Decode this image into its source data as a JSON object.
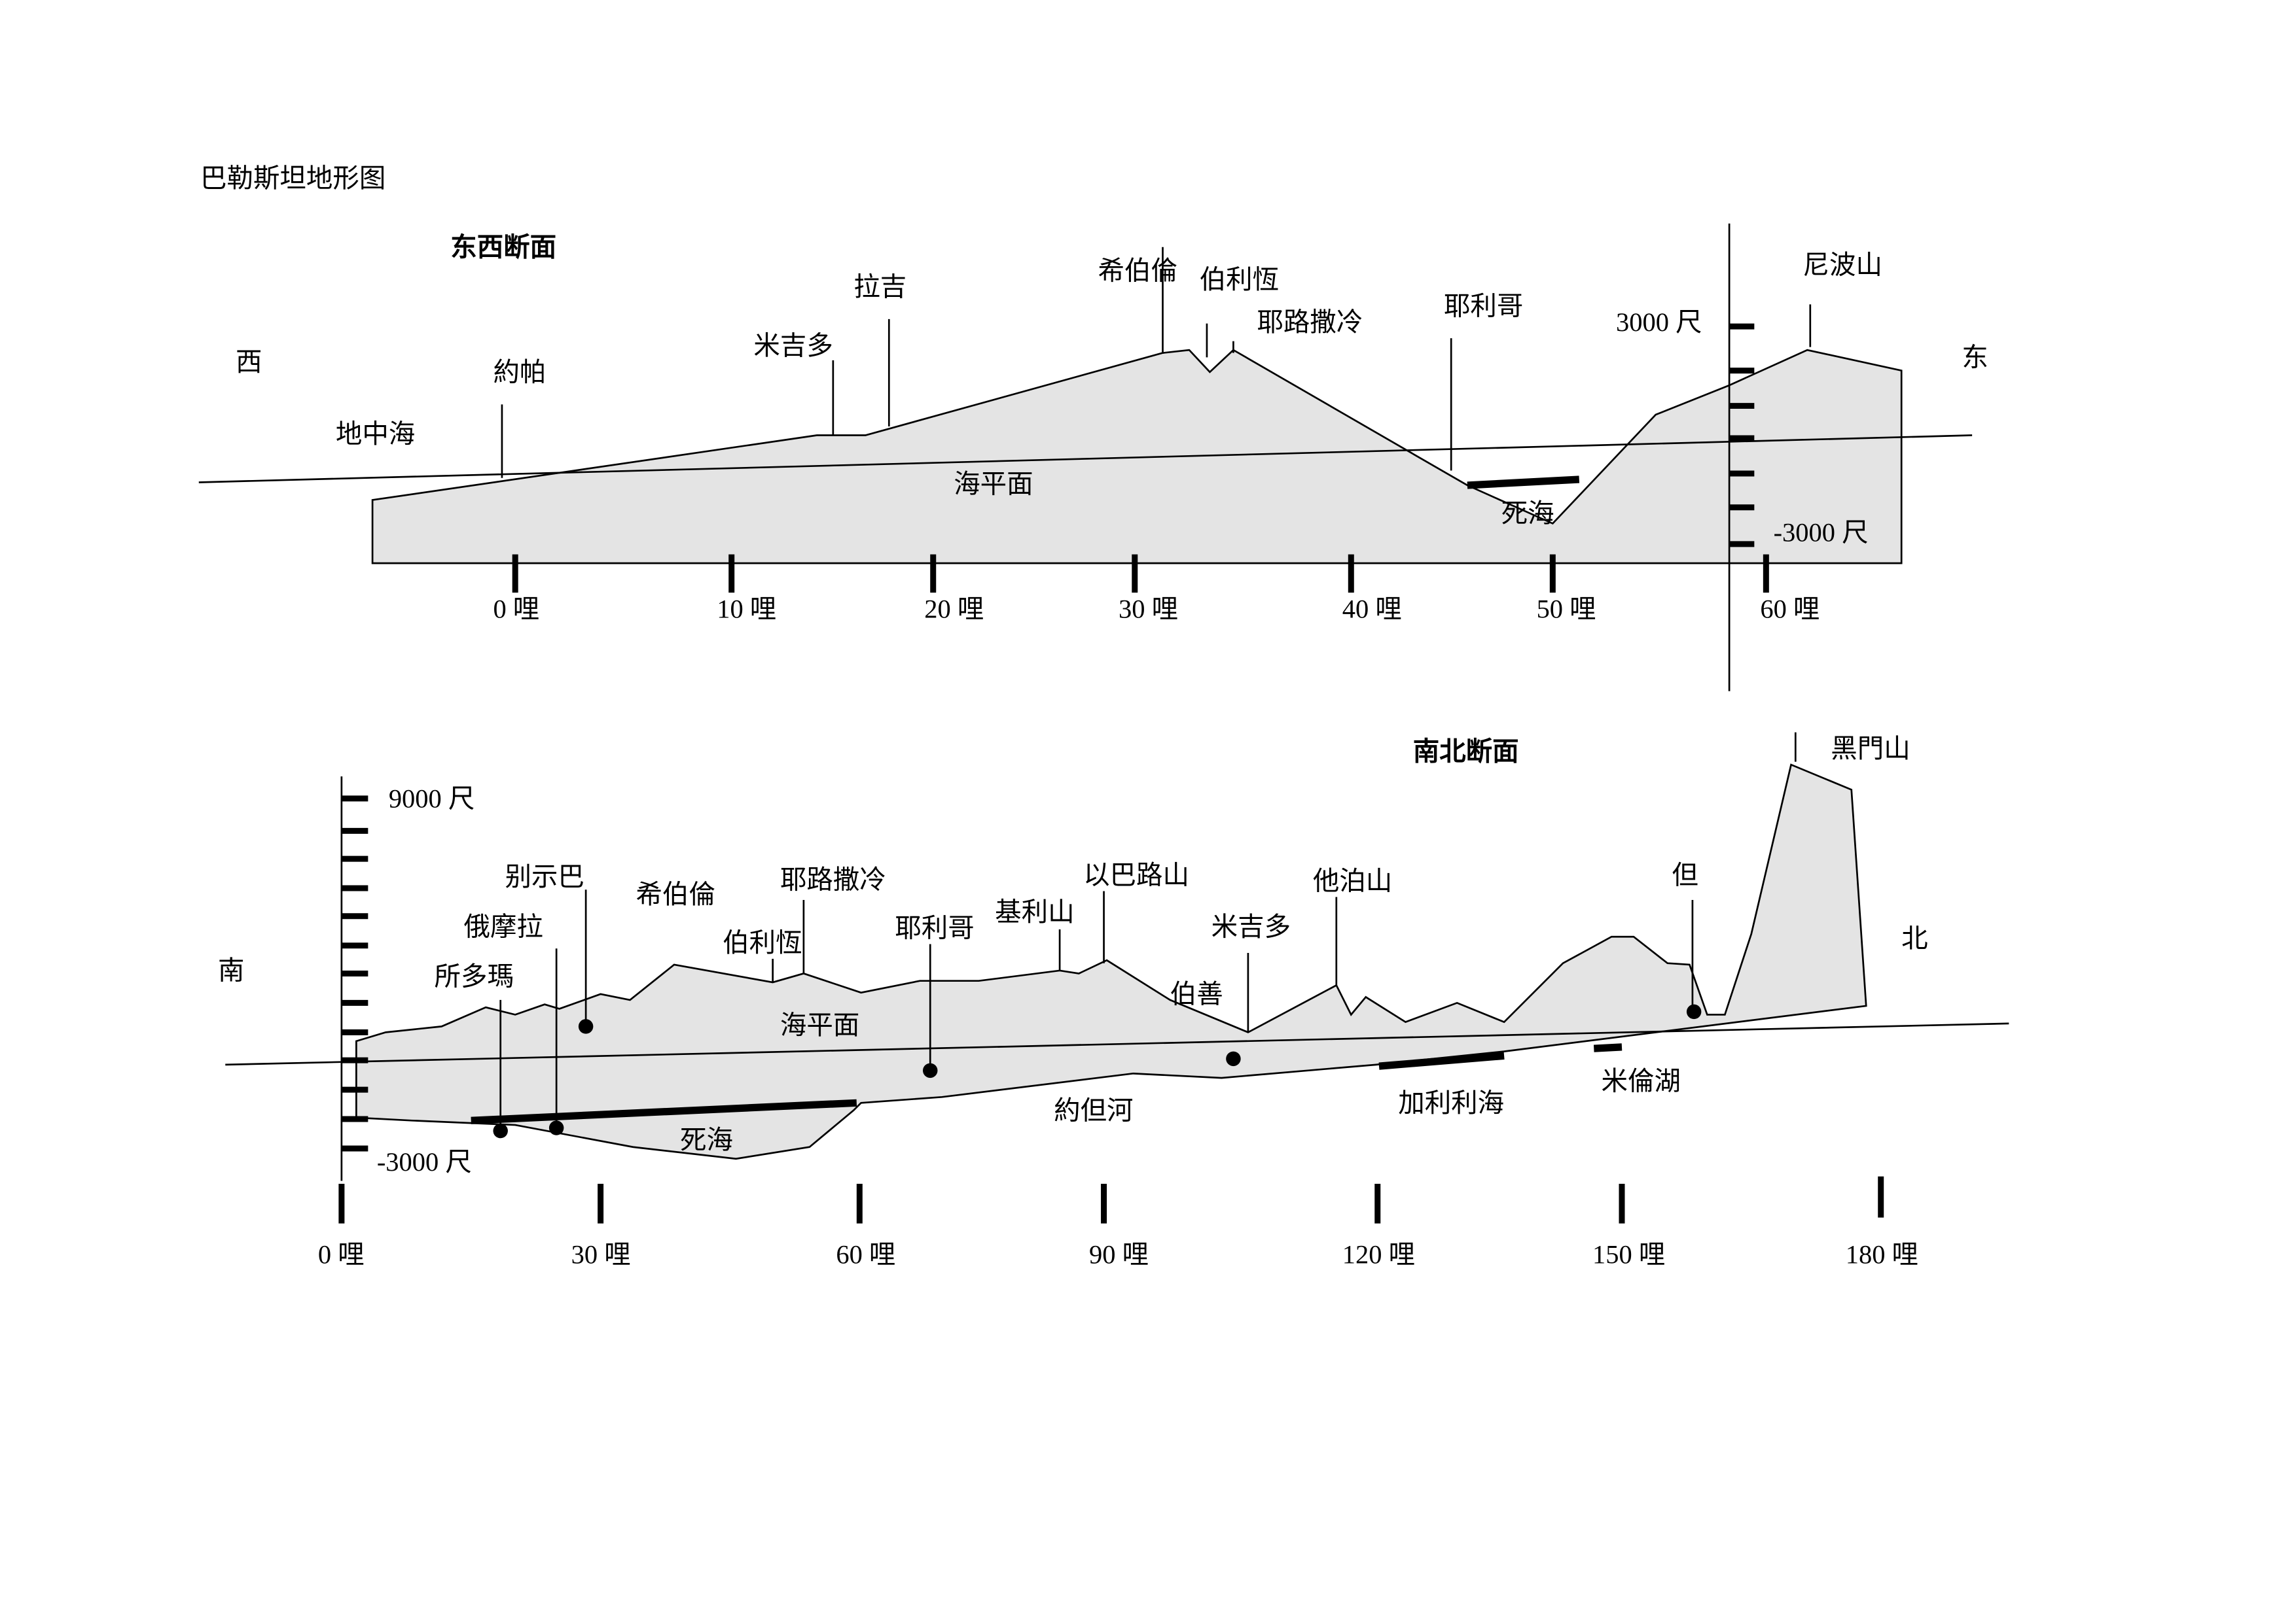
{
  "title": "巴勒斯坦地形图",
  "ew": {
    "title": "东西断面",
    "west": "西",
    "east": "东",
    "places": [
      "地中海",
      "約帕",
      "米吉多",
      "拉吉",
      "希伯倫",
      "伯利恆",
      "耶路撒冷",
      "耶利哥",
      "尼波山"
    ],
    "sea_level": "海平面",
    "dead_sea": "死海",
    "scale_top": "3000 尺",
    "scale_bottom": "-3000 尺",
    "miles": [
      "0 哩",
      "10 哩",
      "20 哩",
      "30 哩",
      "40 哩",
      "50 哩",
      "60 哩"
    ]
  },
  "ns": {
    "title": "南北断面",
    "south": "南",
    "north": "北",
    "places": [
      "所多瑪",
      "俄摩拉",
      "别示巴",
      "希伯倫",
      "伯利恆",
      "耶路撒冷",
      "耶利哥",
      "基利山",
      "以巴路山",
      "米吉多",
      "伯善",
      "他泊山",
      "但",
      "黑門山"
    ],
    "sea_level": "海平面",
    "waters": [
      "死海",
      "約但河",
      "加利利海",
      "米倫湖"
    ],
    "scale_top": "9000 尺",
    "scale_bottom": "-3000 尺",
    "miles": [
      "0 哩",
      "30 哩",
      "60 哩",
      "90 哩",
      "120 哩",
      "150 哩",
      "180 哩"
    ]
  }
}
